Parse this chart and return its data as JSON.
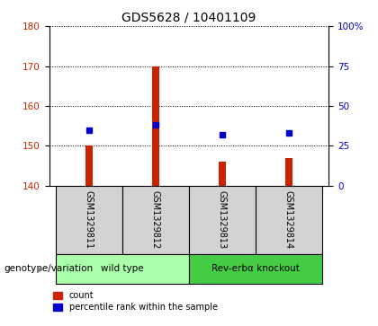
{
  "title": "GDS5628 / 10401109",
  "samples": [
    "GSM1329811",
    "GSM1329812",
    "GSM1329813",
    "GSM1329814"
  ],
  "counts": [
    150,
    170,
    146,
    147
  ],
  "percentiles": [
    35,
    38,
    32,
    33
  ],
  "ylim_left": [
    140,
    180
  ],
  "ylim_right": [
    0,
    100
  ],
  "yticks_left": [
    140,
    150,
    160,
    170,
    180
  ],
  "yticks_right": [
    0,
    25,
    50,
    75,
    100
  ],
  "bar_color": "#cc2200",
  "square_color": "#0000cc",
  "bar_bottom": 140,
  "groups": [
    {
      "label": "wild type",
      "indices": [
        0,
        1
      ],
      "color": "#aaffaa"
    },
    {
      "label": "Rev-erbα knockout",
      "indices": [
        2,
        3
      ],
      "color": "#44cc44"
    }
  ],
  "legend_count_label": "count",
  "legend_pct_label": "percentile rank within the sample",
  "genotype_label": "genotype/variation",
  "title_fontsize": 10,
  "tick_fontsize": 7.5,
  "sample_fontsize": 7,
  "group_fontsize": 7.5,
  "legend_fontsize": 7
}
